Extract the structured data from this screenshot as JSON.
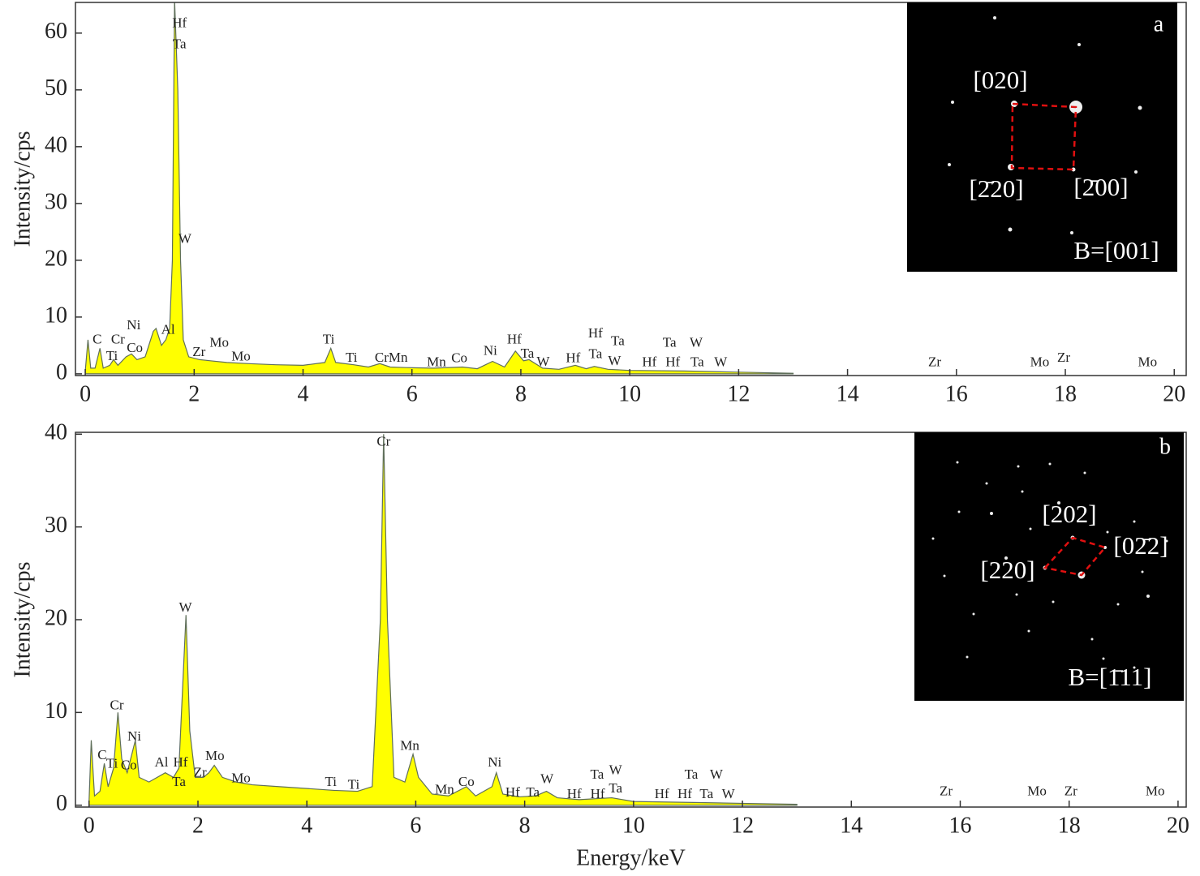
{
  "chart_data": [
    {
      "type": "area",
      "color": "#ffff00",
      "y_label": "Intensity/cps",
      "x": [
        0,
        0.05,
        0.1,
        0.18,
        0.27,
        0.33,
        0.45,
        0.52,
        0.6,
        0.75,
        0.85,
        0.95,
        1.1,
        1.25,
        1.3,
        1.4,
        1.48,
        1.55,
        1.6,
        1.64,
        1.7,
        1.75,
        1.8,
        1.9,
        2.1,
        2.3,
        2.6,
        3.0,
        3.5,
        4.0,
        4.4,
        4.51,
        4.6,
        4.93,
        5.2,
        5.41,
        5.6,
        5.9,
        6.4,
        6.93,
        7.2,
        7.48,
        7.7,
        7.9,
        8.05,
        8.15,
        8.4,
        8.7,
        9.0,
        9.2,
        9.35,
        9.6,
        10,
        11,
        12,
        13
      ],
      "values": [
        0.5,
        6,
        1,
        1,
        4.5,
        1,
        1.5,
        2.5,
        1.5,
        3,
        3.5,
        2.5,
        3,
        7.5,
        8,
        5,
        6,
        8,
        20,
        66,
        50,
        20,
        6,
        3,
        2.5,
        2.3,
        2,
        1.8,
        1.6,
        1.5,
        2,
        4.5,
        2,
        1.6,
        1.2,
        1.8,
        1.2,
        1.1,
        1.0,
        1.2,
        0.9,
        2.2,
        1.2,
        4,
        2.3,
        2.5,
        1,
        0.8,
        1.5,
        0.9,
        1.3,
        0.8,
        0.6,
        0.5,
        0.3,
        0.1
      ],
      "xlim": [
        -0.18,
        20.22
      ],
      "ylim": [
        -0.3,
        65.4
      ],
      "xticks": [
        0,
        2,
        4,
        6,
        8,
        10,
        12,
        14,
        16,
        18,
        20
      ],
      "yticks": [
        0,
        10,
        20,
        30,
        40,
        50,
        60
      ],
      "annotations": [
        {
          "label": "Hf",
          "x": 1.73,
          "y": 61.6
        },
        {
          "label": "Ta",
          "x": 1.73,
          "y": 57.9
        },
        {
          "label": "W",
          "x": 1.83,
          "y": 23.6
        },
        {
          "label": "C",
          "x": 0.22,
          "y": 5.9
        },
        {
          "label": "Ti",
          "x": 0.49,
          "y": 3.0
        },
        {
          "label": "Cr",
          "x": 0.6,
          "y": 5.9
        },
        {
          "label": "Ni",
          "x": 0.89,
          "y": 8.4
        },
        {
          "label": "Co",
          "x": 0.91,
          "y": 4.4
        },
        {
          "label": "Al",
          "x": 1.52,
          "y": 7.6
        },
        {
          "label": "Zr",
          "x": 2.09,
          "y": 3.7
        },
        {
          "label": "Mo",
          "x": 2.46,
          "y": 5.3
        },
        {
          "label": "Mo",
          "x": 2.86,
          "y": 2.9
        },
        {
          "label": "Ti",
          "x": 4.47,
          "y": 5.9
        },
        {
          "label": "Ti",
          "x": 4.89,
          "y": 2.7
        },
        {
          "label": "CrMn",
          "x": 5.62,
          "y": 2.7
        },
        {
          "label": "Mn",
          "x": 6.45,
          "y": 1.9
        },
        {
          "label": "Co",
          "x": 6.87,
          "y": 2.6
        },
        {
          "label": "Ni",
          "x": 7.44,
          "y": 3.9
        },
        {
          "label": "Hf",
          "x": 7.88,
          "y": 5.9
        },
        {
          "label": "Ta",
          "x": 8.12,
          "y": 3.4
        },
        {
          "label": "W",
          "x": 8.41,
          "y": 2.0
        },
        {
          "label": "Hf",
          "x": 8.96,
          "y": 2.6
        },
        {
          "label": "Hf",
          "x": 9.37,
          "y": 7.0
        },
        {
          "label": "Ta",
          "x": 9.37,
          "y": 3.3
        },
        {
          "label": "Ta",
          "x": 9.78,
          "y": 5.6
        },
        {
          "label": "W",
          "x": 9.72,
          "y": 2.1
        },
        {
          "label": "Hf",
          "x": 10.36,
          "y": 1.9
        },
        {
          "label": "Ta",
          "x": 10.73,
          "y": 5.3
        },
        {
          "label": "Hf",
          "x": 10.79,
          "y": 1.9
        },
        {
          "label": "W",
          "x": 11.22,
          "y": 5.3
        },
        {
          "label": "Ta",
          "x": 11.24,
          "y": 1.9
        },
        {
          "label": "W",
          "x": 11.67,
          "y": 1.9
        },
        {
          "label": "Zr",
          "x": 15.6,
          "y": 1.9
        },
        {
          "label": "Mo",
          "x": 17.53,
          "y": 1.9
        },
        {
          "label": "Zr",
          "x": 17.97,
          "y": 2.7
        },
        {
          "label": "Mo",
          "x": 19.51,
          "y": 1.9
        }
      ],
      "inset": {
        "panel": "a",
        "spots": [
          "[020]",
          "[2̄20]",
          "[2̄00]"
        ],
        "zone": "B=[001]"
      }
    },
    {
      "type": "area",
      "color": "#ffff00",
      "y_label": "Intensity/cps",
      "x_label": "Energy/keV",
      "x": [
        0,
        0.04,
        0.1,
        0.2,
        0.28,
        0.35,
        0.45,
        0.53,
        0.6,
        0.7,
        0.85,
        0.92,
        1.1,
        1.4,
        1.55,
        1.65,
        1.78,
        1.85,
        1.95,
        2.1,
        2.2,
        2.3,
        2.45,
        2.7,
        3.0,
        3.5,
        4.0,
        4.5,
        4.93,
        5.2,
        5.35,
        5.41,
        5.48,
        5.6,
        5.8,
        5.95,
        6.05,
        6.3,
        6.6,
        6.93,
        7.1,
        7.4,
        7.48,
        7.6,
        7.9,
        8.2,
        8.4,
        8.6,
        9.0,
        9.6,
        10,
        11,
        12,
        13
      ],
      "values": [
        0.5,
        7,
        1,
        1.5,
        4.5,
        2,
        4,
        10,
        5,
        3.5,
        7,
        3,
        2.5,
        3.5,
        3,
        4,
        20.5,
        8,
        3,
        3,
        3.5,
        4.3,
        3,
        2.5,
        2.2,
        2,
        1.8,
        1.6,
        1.5,
        2,
        20,
        40,
        20,
        3,
        2.5,
        5.5,
        3,
        1.2,
        1,
        2,
        1,
        2,
        3.5,
        1.2,
        0.9,
        1,
        1.5,
        0.8,
        0.6,
        0.8,
        0.4,
        0.3,
        0.2,
        0.1
      ],
      "xlim": [
        -0.25,
        20.15
      ],
      "ylim": [
        -0.2,
        40.2
      ],
      "xticks": [
        0,
        2,
        4,
        6,
        8,
        10,
        12,
        14,
        16,
        18,
        20
      ],
      "yticks": [
        0,
        10,
        20,
        30,
        40
      ],
      "annotations": [
        {
          "label": "Cr",
          "x": 5.41,
          "y": 39.1
        },
        {
          "label": "W",
          "x": 1.77,
          "y": 21.2
        },
        {
          "label": "Cr",
          "x": 0.51,
          "y": 10.7
        },
        {
          "label": "Ni",
          "x": 0.83,
          "y": 7.3
        },
        {
          "label": "C",
          "x": 0.24,
          "y": 5.3
        },
        {
          "label": "Ti",
          "x": 0.42,
          "y": 4.4
        },
        {
          "label": "Co",
          "x": 0.73,
          "y": 4.2
        },
        {
          "label": "Al",
          "x": 1.33,
          "y": 4.5
        },
        {
          "label": "Hf",
          "x": 1.68,
          "y": 4.5
        },
        {
          "label": "Ta",
          "x": 1.65,
          "y": 2.4
        },
        {
          "label": "Zr",
          "x": 2.04,
          "y": 3.4
        },
        {
          "label": "Mo",
          "x": 2.31,
          "y": 5.2
        },
        {
          "label": "Mo",
          "x": 2.79,
          "y": 2.8
        },
        {
          "label": "Ti",
          "x": 4.44,
          "y": 2.4
        },
        {
          "label": "Ti",
          "x": 4.86,
          "y": 2.1
        },
        {
          "label": "Mn",
          "x": 5.89,
          "y": 6.3
        },
        {
          "label": "Mn",
          "x": 6.53,
          "y": 1.6
        },
        {
          "label": "Co",
          "x": 6.93,
          "y": 2.4
        },
        {
          "label": "Ni",
          "x": 7.45,
          "y": 4.5
        },
        {
          "label": "Hf",
          "x": 7.78,
          "y": 1.3
        },
        {
          "label": "Ta",
          "x": 8.15,
          "y": 1.3
        },
        {
          "label": "W",
          "x": 8.41,
          "y": 2.7
        },
        {
          "label": "Hf",
          "x": 8.91,
          "y": 1.1
        },
        {
          "label": "Hf",
          "x": 9.34,
          "y": 1.1
        },
        {
          "label": "Ta",
          "x": 9.33,
          "y": 3.2
        },
        {
          "label": "W",
          "x": 9.67,
          "y": 3.7
        },
        {
          "label": "Ta",
          "x": 9.67,
          "y": 1.7
        },
        {
          "label": "Hf",
          "x": 10.52,
          "y": 1.1
        },
        {
          "label": "Hf",
          "x": 10.94,
          "y": 1.1
        },
        {
          "label": "Ta",
          "x": 11.06,
          "y": 3.2
        },
        {
          "label": "W",
          "x": 11.52,
          "y": 3.2
        },
        {
          "label": "Ta",
          "x": 11.34,
          "y": 1.1
        },
        {
          "label": "W",
          "x": 11.74,
          "y": 1.1
        },
        {
          "label": "Zr",
          "x": 15.74,
          "y": 1.4
        },
        {
          "label": "Mo",
          "x": 17.41,
          "y": 1.4
        },
        {
          "label": "Zr",
          "x": 18.03,
          "y": 1.4
        },
        {
          "label": "Mo",
          "x": 19.58,
          "y": 1.4
        }
      ],
      "inset": {
        "panel": "b",
        "spots": [
          "[202]",
          "[02̄2]",
          "[220]"
        ],
        "zone": "B=[1̄11]"
      }
    }
  ]
}
